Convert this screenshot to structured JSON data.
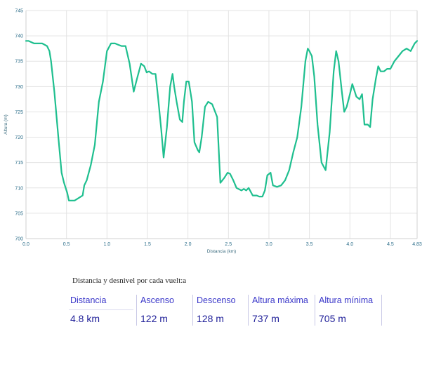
{
  "chart_data": {
    "type": "line",
    "xlabel": "Distancia (km)",
    "ylabel": "Altura (m)",
    "xlim": [
      0,
      4.83
    ],
    "ylim": [
      700,
      745
    ],
    "x_ticks": [
      0.0,
      0.5,
      1.0,
      1.5,
      2.0,
      2.5,
      3.0,
      3.5,
      4.0,
      4.5,
      4.83
    ],
    "x_tick_labels": [
      "0.0",
      "0.5",
      "1.0",
      "1.5",
      "2.0",
      "2.5",
      "3.0",
      "3.5",
      "4.0",
      "4.5",
      "4.83"
    ],
    "y_ticks": [
      700,
      705,
      710,
      715,
      720,
      725,
      730,
      735,
      740,
      745
    ],
    "y_tick_labels": [
      "700",
      "705",
      "710",
      "715",
      "720",
      "725",
      "730",
      "735",
      "740",
      "745"
    ],
    "grid": true,
    "line_color": "#1fbf8f",
    "series": [
      {
        "x": [
          0.0,
          0.03,
          0.1,
          0.2,
          0.26,
          0.29,
          0.31,
          0.35,
          0.4,
          0.44,
          0.47,
          0.51,
          0.53,
          0.56,
          0.6,
          0.65,
          0.7,
          0.72,
          0.75,
          0.8,
          0.85,
          0.9,
          0.95,
          1.0,
          1.05,
          1.1,
          1.13,
          1.18,
          1.23,
          1.28,
          1.33,
          1.37,
          1.42,
          1.46,
          1.49,
          1.52,
          1.56,
          1.6,
          1.63,
          1.67,
          1.7,
          1.74,
          1.78,
          1.81,
          1.83,
          1.86,
          1.9,
          1.93,
          1.95,
          1.98,
          2.01,
          2.05,
          2.08,
          2.12,
          2.14,
          2.17,
          2.21,
          2.25,
          2.3,
          2.36,
          2.4,
          2.45,
          2.49,
          2.52,
          2.56,
          2.6,
          2.66,
          2.69,
          2.72,
          2.75,
          2.8,
          2.85,
          2.88,
          2.92,
          2.95,
          2.98,
          3.02,
          3.05,
          3.1,
          3.15,
          3.2,
          3.25,
          3.3,
          3.35,
          3.4,
          3.45,
          3.48,
          3.5,
          3.53,
          3.56,
          3.6,
          3.65,
          3.7,
          3.75,
          3.8,
          3.83,
          3.86,
          3.9,
          3.93,
          3.96,
          4.0,
          4.03,
          4.08,
          4.12,
          4.15,
          4.18,
          4.22,
          4.25,
          4.28,
          4.32,
          4.35,
          4.38,
          4.42,
          4.46,
          4.5,
          4.55,
          4.6,
          4.65,
          4.7,
          4.75,
          4.8,
          4.83
        ],
        "y": [
          739,
          739,
          738.5,
          738.5,
          738,
          737,
          735,
          729,
          720,
          713,
          711,
          709,
          707.5,
          707.5,
          707.5,
          708,
          708.5,
          710.5,
          711.5,
          714.5,
          718.5,
          727,
          731,
          737,
          738.5,
          738.5,
          738.3,
          738,
          738,
          734.5,
          729,
          731.5,
          734.5,
          734,
          732.8,
          733,
          732.5,
          732.5,
          728,
          721.5,
          716,
          722,
          730,
          732.5,
          730,
          727,
          723.5,
          723,
          727,
          731,
          731,
          727,
          719,
          717.5,
          717,
          720,
          726,
          727,
          726.5,
          724,
          711,
          712,
          713,
          712.8,
          711.5,
          710,
          709.5,
          709.8,
          709.5,
          710,
          708.5,
          708.5,
          708.3,
          708.3,
          709.5,
          712.5,
          713,
          710.5,
          710.2,
          710.5,
          711.5,
          713.5,
          717,
          720,
          726,
          735,
          737.5,
          737,
          736,
          732,
          722.5,
          715,
          713.5,
          721,
          733,
          737,
          735,
          729,
          725,
          726,
          728.5,
          730.5,
          728,
          727.5,
          728.5,
          722.5,
          722.5,
          722,
          727.5,
          731.5,
          734,
          733,
          733,
          733.5,
          733.5,
          735,
          736,
          737,
          737.5,
          737,
          738.5,
          739
        ]
      }
    ]
  },
  "summary": {
    "title": "Distancia y desnivel por cada vuelt:a",
    "columns": [
      {
        "header": "Distancia",
        "value": "4.8 km"
      },
      {
        "header": "Ascenso",
        "value": "122 m"
      },
      {
        "header": "Descenso",
        "value": "128 m"
      },
      {
        "header": "Altura máxima",
        "value": "737 m"
      },
      {
        "header": "Altura mínima",
        "value": "705 m"
      }
    ]
  }
}
